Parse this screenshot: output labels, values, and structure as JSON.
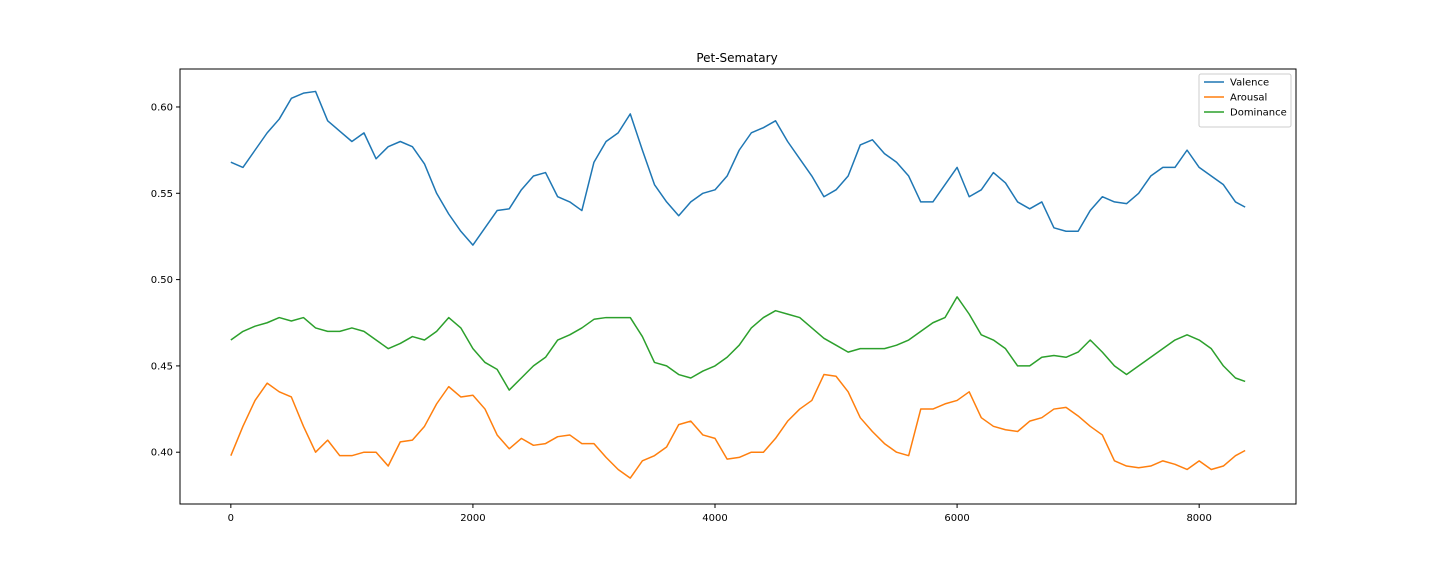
{
  "chart_data": {
    "type": "line",
    "title": "Pet-Sematary",
    "xlabel": "",
    "ylabel": "",
    "xlim": [
      -420,
      8800
    ],
    "ylim": [
      0.37,
      0.622
    ],
    "x_ticks": [
      0,
      2000,
      4000,
      6000,
      8000
    ],
    "x_tick_labels": [
      "0",
      "2000",
      "4000",
      "6000",
      "8000"
    ],
    "y_ticks": [
      0.4,
      0.45,
      0.5,
      0.55,
      0.6
    ],
    "y_tick_labels": [
      "0.40",
      "0.45",
      "0.50",
      "0.55",
      "0.60"
    ],
    "grid": false,
    "legend_position": "top-right",
    "x": [
      0,
      100,
      200,
      300,
      400,
      500,
      600,
      700,
      800,
      900,
      1000,
      1100,
      1200,
      1300,
      1400,
      1500,
      1600,
      1700,
      1800,
      1900,
      2000,
      2100,
      2200,
      2300,
      2400,
      2500,
      2600,
      2700,
      2800,
      2900,
      3000,
      3100,
      3200,
      3300,
      3400,
      3500,
      3600,
      3700,
      3800,
      3900,
      4000,
      4100,
      4200,
      4300,
      4400,
      4500,
      4600,
      4700,
      4800,
      4900,
      5000,
      5100,
      5200,
      5300,
      5400,
      5500,
      5600,
      5700,
      5800,
      5900,
      6000,
      6100,
      6200,
      6300,
      6400,
      6500,
      6600,
      6700,
      6800,
      6900,
      7000,
      7100,
      7200,
      7300,
      7400,
      7500,
      7600,
      7700,
      7800,
      7900,
      8000,
      8100,
      8200,
      8300,
      8380
    ],
    "series": [
      {
        "name": "Valence",
        "color": "#1f77b4",
        "values": [
          0.568,
          0.565,
          0.575,
          0.585,
          0.593,
          0.605,
          0.608,
          0.609,
          0.592,
          0.586,
          0.58,
          0.585,
          0.57,
          0.577,
          0.58,
          0.577,
          0.567,
          0.55,
          0.538,
          0.528,
          0.52,
          0.53,
          0.54,
          0.541,
          0.552,
          0.56,
          0.562,
          0.548,
          0.545,
          0.54,
          0.568,
          0.58,
          0.585,
          0.596,
          0.575,
          0.555,
          0.545,
          0.537,
          0.545,
          0.55,
          0.552,
          0.56,
          0.575,
          0.585,
          0.588,
          0.592,
          0.58,
          0.57,
          0.56,
          0.548,
          0.552,
          0.56,
          0.578,
          0.581,
          0.573,
          0.568,
          0.56,
          0.545,
          0.545,
          0.555,
          0.565,
          0.548,
          0.552,
          0.562,
          0.556,
          0.545,
          0.541,
          0.545,
          0.53,
          0.528,
          0.528,
          0.54,
          0.548,
          0.545,
          0.544,
          0.55,
          0.56,
          0.565,
          0.565,
          0.575,
          0.565,
          0.56,
          0.555,
          0.545,
          0.542
        ]
      },
      {
        "name": "Arousal",
        "color": "#ff7f0e",
        "values": [
          0.398,
          0.415,
          0.43,
          0.44,
          0.435,
          0.432,
          0.415,
          0.4,
          0.407,
          0.398,
          0.398,
          0.4,
          0.4,
          0.392,
          0.406,
          0.407,
          0.415,
          0.428,
          0.438,
          0.432,
          0.433,
          0.425,
          0.41,
          0.402,
          0.408,
          0.404,
          0.405,
          0.409,
          0.41,
          0.405,
          0.405,
          0.397,
          0.39,
          0.385,
          0.395,
          0.398,
          0.403,
          0.416,
          0.418,
          0.41,
          0.408,
          0.396,
          0.397,
          0.4,
          0.4,
          0.408,
          0.418,
          0.425,
          0.43,
          0.445,
          0.444,
          0.435,
          0.42,
          0.412,
          0.405,
          0.4,
          0.398,
          0.425,
          0.425,
          0.428,
          0.43,
          0.435,
          0.42,
          0.415,
          0.413,
          0.412,
          0.418,
          0.42,
          0.425,
          0.426,
          0.421,
          0.415,
          0.41,
          0.395,
          0.392,
          0.391,
          0.392,
          0.395,
          0.393,
          0.39,
          0.395,
          0.39,
          0.392,
          0.398,
          0.401
        ]
      },
      {
        "name": "Dominance",
        "color": "#2ca02c",
        "values": [
          0.465,
          0.47,
          0.473,
          0.475,
          0.478,
          0.476,
          0.478,
          0.472,
          0.47,
          0.47,
          0.472,
          0.47,
          0.465,
          0.46,
          0.463,
          0.467,
          0.465,
          0.47,
          0.478,
          0.472,
          0.46,
          0.452,
          0.448,
          0.436,
          0.443,
          0.45,
          0.455,
          0.465,
          0.468,
          0.472,
          0.477,
          0.478,
          0.478,
          0.478,
          0.467,
          0.452,
          0.45,
          0.445,
          0.443,
          0.447,
          0.45,
          0.455,
          0.462,
          0.472,
          0.478,
          0.482,
          0.48,
          0.478,
          0.472,
          0.466,
          0.462,
          0.458,
          0.46,
          0.46,
          0.46,
          0.462,
          0.465,
          0.47,
          0.475,
          0.478,
          0.49,
          0.48,
          0.468,
          0.465,
          0.46,
          0.45,
          0.45,
          0.455,
          0.456,
          0.455,
          0.458,
          0.465,
          0.458,
          0.45,
          0.445,
          0.45,
          0.455,
          0.46,
          0.465,
          0.468,
          0.465,
          0.46,
          0.45,
          0.443,
          0.441
        ]
      }
    ]
  }
}
